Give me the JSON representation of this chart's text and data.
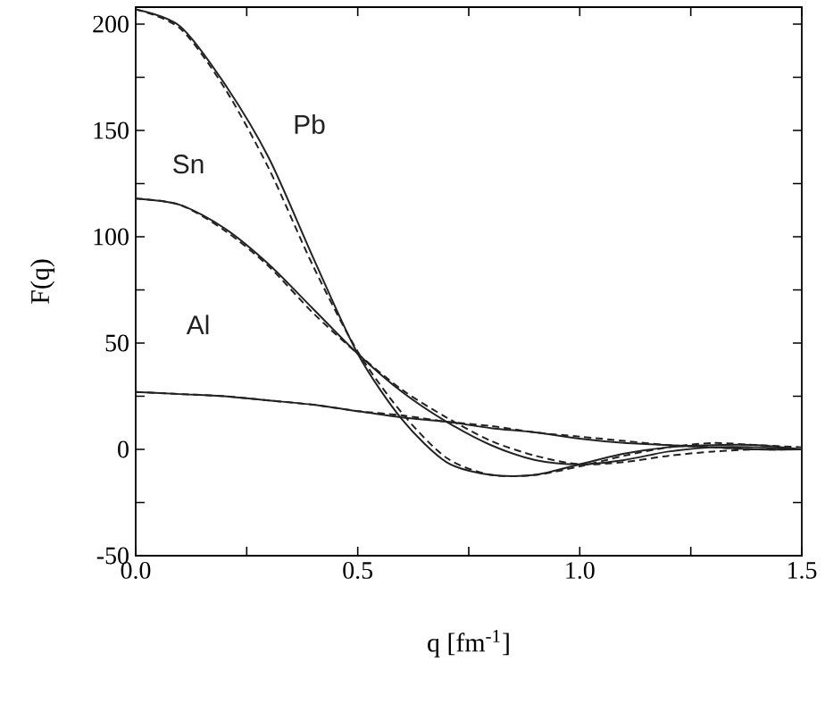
{
  "chart_data": {
    "type": "line",
    "xlabel": "q [fm$^{-1}$]",
    "ylabel": "F(q)",
    "xlim": [
      0,
      1.5
    ],
    "ylim": [
      -50,
      208
    ],
    "xticks": [
      {
        "value": 0,
        "label": "0.0"
      },
      {
        "value": 0.25,
        "label": null
      },
      {
        "value": 0.5,
        "label": "0.5"
      },
      {
        "value": 0.75,
        "label": null
      },
      {
        "value": 1,
        "label": "1.0"
      },
      {
        "value": 1.25,
        "label": null
      },
      {
        "value": 1.5,
        "label": "1.5"
      }
    ],
    "yticks": [
      -50,
      {
        "value": -25,
        "label": null
      },
      0,
      {
        "value": 25,
        "label": null
      },
      50,
      {
        "value": 75,
        "label": null
      },
      100,
      {
        "value": 125,
        "label": null
      },
      150,
      {
        "value": 175,
        "label": null
      },
      200
    ],
    "x": [
      0,
      0.1,
      0.2,
      0.3,
      0.4,
      0.5,
      0.6,
      0.7,
      0.8,
      0.9,
      1.0,
      1.1,
      1.2,
      1.3,
      1.4,
      1.5
    ],
    "grid": false,
    "marker": "none",
    "series": [
      {
        "name": "Pb",
        "color": "#222222",
        "line_style": "solid",
        "values": [
          207,
          199,
          172,
          137,
          90,
          45,
          14,
          -6,
          -12,
          -12,
          -7,
          -2,
          1,
          2,
          2,
          0
        ]
      },
      {
        "color": "#222222",
        "line_style": "dashed",
        "values": [
          207,
          198,
          170,
          132,
          86,
          46,
          17,
          -4,
          -12,
          -12,
          -8,
          -3,
          1,
          3,
          2,
          1
        ]
      },
      {
        "name": "Sn",
        "color": "#222222",
        "line_style": "solid",
        "values": [
          118,
          115,
          104,
          87,
          66,
          45,
          27,
          13,
          2,
          -5,
          -7,
          -5,
          -1,
          1,
          1,
          0
        ]
      },
      {
        "color": "#222222",
        "line_style": "dashed",
        "values": [
          118,
          115,
          103,
          86,
          64,
          45,
          28,
          15,
          4,
          -3,
          -7,
          -6,
          -3,
          -1,
          0,
          0
        ]
      },
      {
        "name": "Al",
        "color": "#222222",
        "line_style": "solid",
        "values": [
          27,
          26,
          25,
          23,
          21,
          18,
          15,
          13,
          10,
          8,
          5,
          3,
          2,
          1,
          0,
          0
        ]
      },
      {
        "color": "#222222",
        "line_style": "dashed",
        "values": [
          27,
          26,
          25,
          23,
          21,
          18,
          16,
          13,
          11,
          8,
          6,
          4,
          2,
          1,
          0,
          0
        ]
      }
    ]
  }
}
